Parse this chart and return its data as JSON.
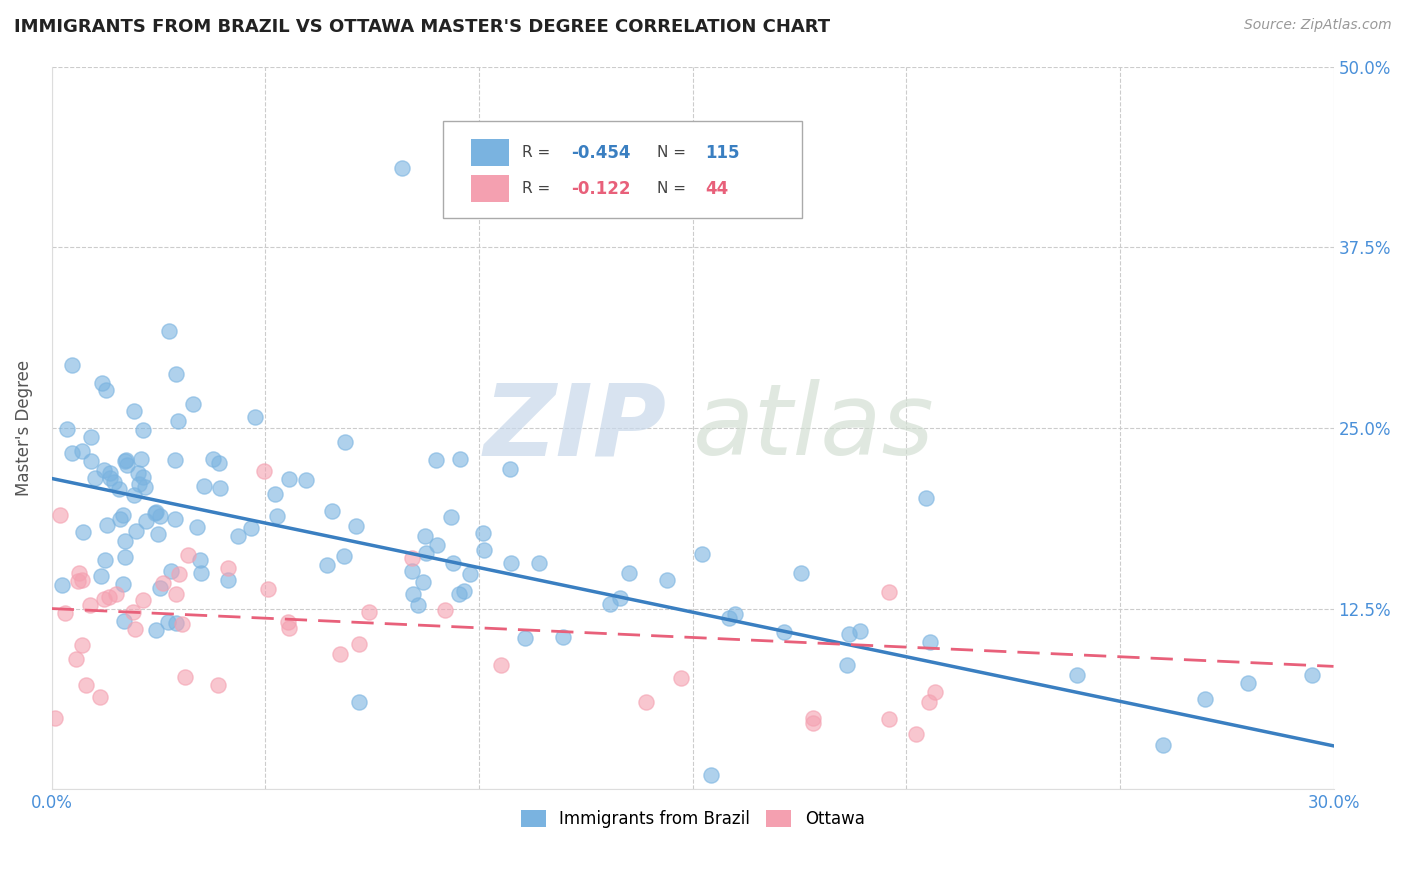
{
  "title": "IMMIGRANTS FROM BRAZIL VS OTTAWA MASTER'S DEGREE CORRELATION CHART",
  "source_text": "Source: ZipAtlas.com",
  "ylabel": "Master's Degree",
  "x_min": 0.0,
  "x_max": 0.3,
  "y_min": 0.0,
  "y_max": 0.5,
  "x_ticks": [
    0.0,
    0.3
  ],
  "x_tick_labels": [
    "0.0%",
    "30.0%"
  ],
  "y_ticks": [
    0.0,
    0.125,
    0.25,
    0.375,
    0.5
  ],
  "y_tick_labels": [
    "",
    "12.5%",
    "25.0%",
    "37.5%",
    "50.0%"
  ],
  "grid_color": "#cccccc",
  "background_color": "#ffffff",
  "blue_color": "#7ab3e0",
  "pink_color": "#f4a0b0",
  "blue_line_color": "#3a7fc1",
  "pink_line_color": "#e8607a",
  "axis_label_color": "#4a90d9",
  "legend_r1": "-0.454",
  "legend_n1": "115",
  "legend_r2": "-0.122",
  "legend_n2": "44"
}
